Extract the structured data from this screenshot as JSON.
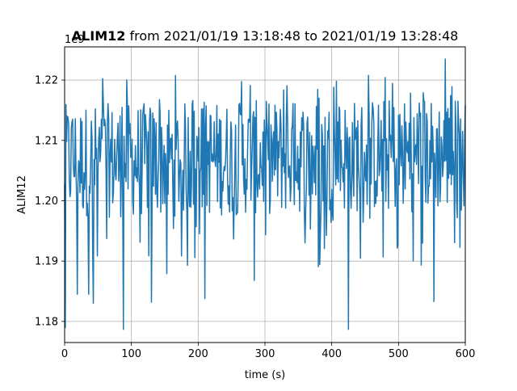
{
  "chart_data": {
    "type": "line",
    "title_bold": "ALIM12",
    "title_rest": " from 2021/01/19 13:18:48 to 2021/01/19 13:28:48",
    "xlabel": "time (s)",
    "ylabel": "ALIM12",
    "offset_label": "1e9",
    "xlim": [
      0,
      600
    ],
    "ylim": [
      1.1765,
      1.2255
    ],
    "x_ticks": [
      0,
      100,
      200,
      300,
      400,
      500,
      600
    ],
    "y_ticks": [
      1.18,
      1.19,
      1.2,
      1.21,
      1.22
    ],
    "y_tick_labels": [
      "1.18",
      "1.19",
      "1.20",
      "1.21",
      "1.22"
    ],
    "grid": true,
    "line_color": "#1f77b4",
    "series": [
      {
        "values_summary": {
          "x_start": 0,
          "x_end": 600,
          "sample_step": 1,
          "typical_band": [
            1.198,
            1.215
          ],
          "min_approx": 1.1787,
          "max_approx": 1.2235
        },
        "notable_points": [
          {
            "x": 1,
            "y": 1.179
          },
          {
            "x": 4,
            "y": 1.214
          },
          {
            "x": 12,
            "y": 1.2135
          },
          {
            "x": 19,
            "y": 1.1845
          },
          {
            "x": 36,
            "y": 1.1845
          },
          {
            "x": 43,
            "y": 1.183
          },
          {
            "x": 88,
            "y": 1.1787
          },
          {
            "x": 130,
            "y": 1.1832
          },
          {
            "x": 210,
            "y": 1.1838
          },
          {
            "x": 284,
            "y": 1.1868
          },
          {
            "x": 425,
            "y": 1.1787
          },
          {
            "x": 553,
            "y": 1.1833
          },
          {
            "x": 570,
            "y": 1.2235
          }
        ]
      }
    ]
  }
}
